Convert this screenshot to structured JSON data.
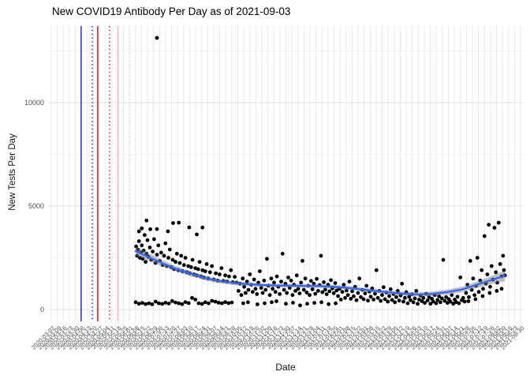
{
  "title": "New COVID19 Antibody Per Day as of 2021-09-03",
  "chart_data": {
    "type": "scatter",
    "title": "New COVID19 Antibody Per Day as of 2021-09-03",
    "xlabel": "Date",
    "ylabel": "New Tests Per Day",
    "legend": "none",
    "grid": true,
    "y_ticks": [
      0,
      5000,
      10000
    ],
    "y_minor_gridlines": [
      2500,
      7500,
      12500
    ],
    "ylim": [
      -570,
      13730
    ],
    "x_tick_labels": [
      "2020-03-02",
      "2020-03-09",
      "2020-03-16",
      "2020-03-23",
      "2020-03-30",
      "2020-04-06",
      "2020-04-13",
      "2020-04-20",
      "2020-04-27",
      "2020-05-04",
      "2020-05-11",
      "2020-05-18",
      "2020-05-25",
      "2020-06-01",
      "2020-06-08",
      "2020-06-15",
      "2020-06-22",
      "2020-06-29",
      "2020-07-06",
      "2020-07-13",
      "2020-07-20",
      "2020-07-27",
      "2020-08-03",
      "2020-08-10",
      "2020-08-17",
      "2020-08-24",
      "2020-08-31",
      "2020-09-07",
      "2020-09-14",
      "2020-09-21",
      "2020-09-28",
      "2020-10-05",
      "2020-10-12",
      "2020-10-19",
      "2020-10-26",
      "2020-11-02",
      "2020-11-09",
      "2020-11-16",
      "2020-11-23",
      "2020-11-30",
      "2020-12-07",
      "2020-12-14",
      "2020-12-21",
      "2020-12-28",
      "2021-01-04",
      "2021-01-11",
      "2021-01-18",
      "2021-01-25",
      "2021-02-01",
      "2021-02-08",
      "2021-02-15",
      "2021-02-22",
      "2021-03-01",
      "2021-03-08",
      "2021-03-15",
      "2021-03-22",
      "2021-03-29",
      "2021-04-05",
      "2021-04-12",
      "2021-04-19",
      "2021-04-26",
      "2021-05-03",
      "2021-05-10",
      "2021-05-17",
      "2021-05-24",
      "2021-05-31",
      "2021-06-07",
      "2021-06-14",
      "2021-06-21",
      "2021-06-28",
      "2021-07-05",
      "2021-07-12",
      "2021-07-19",
      "2021-07-26",
      "2021-08-02",
      "2021-08-09",
      "2021-08-16",
      "2021-08-23",
      "2021-08-30"
    ],
    "reference_lines": [
      {
        "x_frac": 0.068,
        "color": "#1a1acc",
        "style": "solid"
      },
      {
        "x_frac": 0.0915,
        "color": "#2424cc",
        "style": "dotted"
      },
      {
        "x_frac": 0.103,
        "color": "#e00000",
        "style": "solid"
      },
      {
        "x_frac": 0.128,
        "color": "#bb2222",
        "style": "dotted"
      },
      {
        "x_frac": 0.146,
        "color": "#ffafc2",
        "style": "solid"
      },
      {
        "x_frac": 0.17,
        "color": "#ffc9d6",
        "style": "dotted"
      }
    ],
    "colors": {
      "point": "#000000",
      "smooth": "#3366FF",
      "ribbon": "rgba(120,120,120,0.45)",
      "grid_vertical": "#e7e7e7",
      "grid_major": "#e2e2e2",
      "grid_minor": "#f1f1f1",
      "axis_text": "#4d4d4d",
      "title_text": "#000000"
    },
    "smooth": [
      [
        0.183,
        2820,
        230
      ],
      [
        0.21,
        2540,
        180
      ],
      [
        0.24,
        2230,
        150
      ],
      [
        0.27,
        1950,
        130
      ],
      [
        0.3,
        1720,
        120
      ],
      [
        0.33,
        1520,
        110
      ],
      [
        0.36,
        1370,
        100
      ],
      [
        0.39,
        1280,
        95
      ],
      [
        0.42,
        1220,
        90
      ],
      [
        0.45,
        1185,
        85
      ],
      [
        0.48,
        1160,
        85
      ],
      [
        0.51,
        1150,
        85
      ],
      [
        0.54,
        1140,
        85
      ],
      [
        0.57,
        1130,
        85
      ],
      [
        0.6,
        1100,
        85
      ],
      [
        0.63,
        1050,
        85
      ],
      [
        0.66,
        970,
        85
      ],
      [
        0.69,
        890,
        90
      ],
      [
        0.72,
        820,
        95
      ],
      [
        0.75,
        760,
        95
      ],
      [
        0.78,
        730,
        100
      ],
      [
        0.81,
        760,
        110
      ],
      [
        0.84,
        840,
        120
      ],
      [
        0.87,
        960,
        130
      ],
      [
        0.9,
        1170,
        150
      ],
      [
        0.93,
        1400,
        190
      ],
      [
        0.962,
        1630,
        260
      ]
    ],
    "points": [
      [
        0.183,
        350
      ],
      [
        0.19,
        280
      ],
      [
        0.197,
        320
      ],
      [
        0.204,
        260
      ],
      [
        0.211,
        300
      ],
      [
        0.218,
        250
      ],
      [
        0.225,
        380
      ],
      [
        0.232,
        300
      ],
      [
        0.239,
        270
      ],
      [
        0.246,
        330
      ],
      [
        0.253,
        290
      ],
      [
        0.26,
        410
      ],
      [
        0.267,
        340
      ],
      [
        0.274,
        300
      ],
      [
        0.281,
        260
      ],
      [
        0.288,
        360
      ],
      [
        0.295,
        310
      ],
      [
        0.302,
        560
      ],
      [
        0.309,
        480
      ],
      [
        0.316,
        300
      ],
      [
        0.323,
        270
      ],
      [
        0.33,
        350
      ],
      [
        0.337,
        300
      ],
      [
        0.344,
        420
      ],
      [
        0.351,
        380
      ],
      [
        0.358,
        330
      ],
      [
        0.365,
        300
      ],
      [
        0.372,
        360
      ],
      [
        0.379,
        310
      ],
      [
        0.386,
        340
      ],
      [
        0.184,
        3050
      ],
      [
        0.186,
        2600
      ],
      [
        0.188,
        2900
      ],
      [
        0.19,
        3300
      ],
      [
        0.192,
        2500
      ],
      [
        0.194,
        2750
      ],
      [
        0.196,
        3100
      ],
      [
        0.198,
        2450
      ],
      [
        0.2,
        2850
      ],
      [
        0.202,
        3600
      ],
      [
        0.204,
        2300
      ],
      [
        0.206,
        2700
      ],
      [
        0.208,
        3350
      ],
      [
        0.21,
        2550
      ],
      [
        0.213,
        3000
      ],
      [
        0.216,
        2400
      ],
      [
        0.219,
        2800
      ],
      [
        0.222,
        3400
      ],
      [
        0.225,
        2250
      ],
      [
        0.228,
        2650
      ],
      [
        0.231,
        3100
      ],
      [
        0.234,
        2350
      ],
      [
        0.237,
        2750
      ],
      [
        0.24,
        2150
      ],
      [
        0.243,
        2600
      ],
      [
        0.246,
        3200
      ],
      [
        0.249,
        2100
      ],
      [
        0.252,
        2500
      ],
      [
        0.255,
        2900
      ],
      [
        0.258,
        2050
      ],
      [
        0.261,
        2400
      ],
      [
        0.264,
        1950
      ],
      [
        0.267,
        2300
      ],
      [
        0.27,
        2700
      ],
      [
        0.273,
        1900
      ],
      [
        0.276,
        2250
      ],
      [
        0.279,
        2600
      ],
      [
        0.282,
        1850
      ],
      [
        0.285,
        2150
      ],
      [
        0.288,
        2500
      ],
      [
        0.291,
        1800
      ],
      [
        0.294,
        2100
      ],
      [
        0.297,
        1750
      ],
      [
        0.3,
        2050
      ],
      [
        0.303,
        2400
      ],
      [
        0.306,
        1700
      ],
      [
        0.309,
        2000
      ],
      [
        0.312,
        1650
      ],
      [
        0.315,
        1950
      ],
      [
        0.318,
        2300
      ],
      [
        0.321,
        1600
      ],
      [
        0.324,
        1900
      ],
      [
        0.327,
        1550
      ],
      [
        0.33,
        1850
      ],
      [
        0.333,
        2200
      ],
      [
        0.336,
        1500
      ],
      [
        0.34,
        1800
      ],
      [
        0.344,
        2100
      ],
      [
        0.348,
        1450
      ],
      [
        0.352,
        1750
      ],
      [
        0.356,
        1400
      ],
      [
        0.36,
        1700
      ],
      [
        0.364,
        2000
      ],
      [
        0.368,
        1380
      ],
      [
        0.372,
        1650
      ],
      [
        0.376,
        1350
      ],
      [
        0.38,
        1600
      ],
      [
        0.384,
        1900
      ],
      [
        0.388,
        1320
      ],
      [
        0.392,
        1580
      ],
      [
        0.396,
        1300
      ],
      [
        0.19,
        3780
      ],
      [
        0.196,
        3920
      ],
      [
        0.206,
        4300
      ],
      [
        0.214,
        3880
      ],
      [
        0.228,
        3890
      ],
      [
        0.251,
        3780
      ],
      [
        0.262,
        4180
      ],
      [
        0.274,
        4200
      ],
      [
        0.296,
        3970
      ],
      [
        0.312,
        3630
      ],
      [
        0.324,
        3960
      ],
      [
        0.228,
        13130
      ],
      [
        0.4,
        900
      ],
      [
        0.403,
        1250
      ],
      [
        0.406,
        700
      ],
      [
        0.409,
        1500
      ],
      [
        0.412,
        1100
      ],
      [
        0.415,
        800
      ],
      [
        0.418,
        1350
      ],
      [
        0.421,
        950
      ],
      [
        0.424,
        1700
      ],
      [
        0.427,
        1200
      ],
      [
        0.43,
        850
      ],
      [
        0.433,
        1450
      ],
      [
        0.436,
        1000
      ],
      [
        0.439,
        750
      ],
      [
        0.442,
        1300
      ],
      [
        0.445,
        1850
      ],
      [
        0.448,
        1050
      ],
      [
        0.451,
        800
      ],
      [
        0.454,
        1400
      ],
      [
        0.457,
        950
      ],
      [
        0.46,
        2450
      ],
      [
        0.463,
        1150
      ],
      [
        0.466,
        700
      ],
      [
        0.469,
        1500
      ],
      [
        0.472,
        1000
      ],
      [
        0.475,
        1300
      ],
      [
        0.478,
        850
      ],
      [
        0.481,
        1600
      ],
      [
        0.484,
        1100
      ],
      [
        0.487,
        750
      ],
      [
        0.49,
        1350
      ],
      [
        0.493,
        2700
      ],
      [
        0.496,
        950
      ],
      [
        0.499,
        1250
      ],
      [
        0.502,
        800
      ],
      [
        0.505,
        1550
      ],
      [
        0.508,
        1050
      ],
      [
        0.511,
        1400
      ],
      [
        0.514,
        700
      ],
      [
        0.517,
        1200
      ],
      [
        0.52,
        900
      ],
      [
        0.523,
        1650
      ],
      [
        0.526,
        1000
      ],
      [
        0.529,
        780
      ],
      [
        0.532,
        1300
      ],
      [
        0.535,
        2350
      ],
      [
        0.538,
        950
      ],
      [
        0.541,
        1500
      ],
      [
        0.544,
        820
      ],
      [
        0.547,
        1150
      ],
      [
        0.55,
        700
      ],
      [
        0.553,
        1380
      ],
      [
        0.556,
        980
      ],
      [
        0.559,
        1250
      ],
      [
        0.562,
        760
      ],
      [
        0.565,
        1480
      ],
      [
        0.568,
        900
      ],
      [
        0.571,
        1180
      ],
      [
        0.574,
        2600
      ],
      [
        0.577,
        840
      ],
      [
        0.58,
        1320
      ],
      [
        0.583,
        960
      ],
      [
        0.586,
        740
      ],
      [
        0.589,
        1200
      ],
      [
        0.592,
        880
      ],
      [
        0.595,
        1420
      ],
      [
        0.598,
        1020
      ],
      [
        0.601,
        790
      ],
      [
        0.604,
        1280
      ],
      [
        0.607,
        920
      ],
      [
        0.41,
        300
      ],
      [
        0.44,
        250
      ],
      [
        0.47,
        350
      ],
      [
        0.5,
        280
      ],
      [
        0.53,
        200
      ],
      [
        0.56,
        320
      ],
      [
        0.59,
        260
      ],
      [
        0.42,
        350
      ],
      [
        0.455,
        300
      ],
      [
        0.48,
        400
      ],
      [
        0.515,
        330
      ],
      [
        0.545,
        280
      ],
      [
        0.575,
        350
      ],
      [
        0.605,
        300
      ],
      [
        0.61,
        650
      ],
      [
        0.613,
        1000
      ],
      [
        0.616,
        480
      ],
      [
        0.619,
        850
      ],
      [
        0.622,
        1200
      ],
      [
        0.625,
        560
      ],
      [
        0.628,
        920
      ],
      [
        0.631,
        700
      ],
      [
        0.634,
        1350
      ],
      [
        0.637,
        520
      ],
      [
        0.64,
        880
      ],
      [
        0.643,
        640
      ],
      [
        0.646,
        1100
      ],
      [
        0.649,
        450
      ],
      [
        0.652,
        800
      ],
      [
        0.655,
        1500
      ],
      [
        0.658,
        600
      ],
      [
        0.661,
        950
      ],
      [
        0.664,
        500
      ],
      [
        0.667,
        780
      ],
      [
        0.67,
        1150
      ],
      [
        0.673,
        430
      ],
      [
        0.676,
        870
      ],
      [
        0.679,
        620
      ],
      [
        0.682,
        1020
      ],
      [
        0.685,
        480
      ],
      [
        0.688,
        760
      ],
      [
        0.691,
        1900
      ],
      [
        0.694,
        560
      ],
      [
        0.697,
        900
      ],
      [
        0.7,
        420
      ],
      [
        0.703,
        700
      ],
      [
        0.706,
        1080
      ],
      [
        0.709,
        500
      ],
      [
        0.712,
        820
      ],
      [
        0.715,
        380
      ],
      [
        0.718,
        650
      ],
      [
        0.721,
        980
      ],
      [
        0.724,
        460
      ],
      [
        0.727,
        750
      ],
      [
        0.73,
        350
      ],
      [
        0.733,
        600
      ],
      [
        0.736,
        900
      ],
      [
        0.739,
        430
      ],
      [
        0.742,
        680
      ],
      [
        0.745,
        1250
      ],
      [
        0.748,
        380
      ],
      [
        0.751,
        560
      ],
      [
        0.754,
        840
      ],
      [
        0.757,
        300
      ],
      [
        0.76,
        620
      ],
      [
        0.763,
        450
      ],
      [
        0.766,
        740
      ],
      [
        0.769,
        350
      ],
      [
        0.772,
        540
      ],
      [
        0.775,
        900
      ],
      [
        0.778,
        280
      ],
      [
        0.781,
        480
      ],
      [
        0.784,
        680
      ],
      [
        0.787,
        400
      ],
      [
        0.79,
        560
      ],
      [
        0.793,
        320
      ],
      [
        0.796,
        760
      ],
      [
        0.799,
        440
      ],
      [
        0.802,
        600
      ],
      [
        0.805,
        280
      ],
      [
        0.808,
        520
      ],
      [
        0.811,
        380
      ],
      [
        0.814,
        700
      ],
      [
        0.817,
        300
      ],
      [
        0.82,
        460
      ],
      [
        0.823,
        640
      ],
      [
        0.826,
        350
      ],
      [
        0.829,
        540
      ],
      [
        0.832,
        2400
      ],
      [
        0.835,
        420
      ],
      [
        0.838,
        600
      ],
      [
        0.841,
        320
      ],
      [
        0.844,
        500
      ],
      [
        0.847,
        380
      ],
      [
        0.85,
        700
      ],
      [
        0.853,
        280
      ],
      [
        0.856,
        480
      ],
      [
        0.859,
        360
      ],
      [
        0.862,
        620
      ],
      [
        0.865,
        300
      ],
      [
        0.868,
        1550
      ],
      [
        0.871,
        450
      ],
      [
        0.874,
        560
      ],
      [
        0.877,
        380
      ],
      [
        0.88,
        800
      ],
      [
        0.883,
        1200
      ],
      [
        0.886,
        600
      ],
      [
        0.889,
        2350
      ],
      [
        0.892,
        950
      ],
      [
        0.895,
        1500
      ],
      [
        0.898,
        700
      ],
      [
        0.901,
        1150
      ],
      [
        0.904,
        2500
      ],
      [
        0.907,
        850
      ],
      [
        0.91,
        1400
      ],
      [
        0.913,
        1900
      ],
      [
        0.916,
        1000
      ],
      [
        0.919,
        3550
      ],
      [
        0.922,
        1250
      ],
      [
        0.925,
        1700
      ],
      [
        0.928,
        4100
      ],
      [
        0.931,
        1100
      ],
      [
        0.934,
        2100
      ],
      [
        0.937,
        1450
      ],
      [
        0.94,
        3950
      ],
      [
        0.943,
        1800
      ],
      [
        0.946,
        1300
      ],
      [
        0.949,
        4200
      ],
      [
        0.952,
        2200
      ],
      [
        0.955,
        1600
      ],
      [
        0.958,
        2600
      ],
      [
        0.96,
        1900
      ],
      [
        0.962,
        1650
      ],
      [
        0.885,
        400
      ],
      [
        0.9,
        500
      ],
      [
        0.915,
        650
      ],
      [
        0.93,
        800
      ],
      [
        0.945,
        900
      ],
      [
        0.955,
        1000
      ]
    ]
  }
}
